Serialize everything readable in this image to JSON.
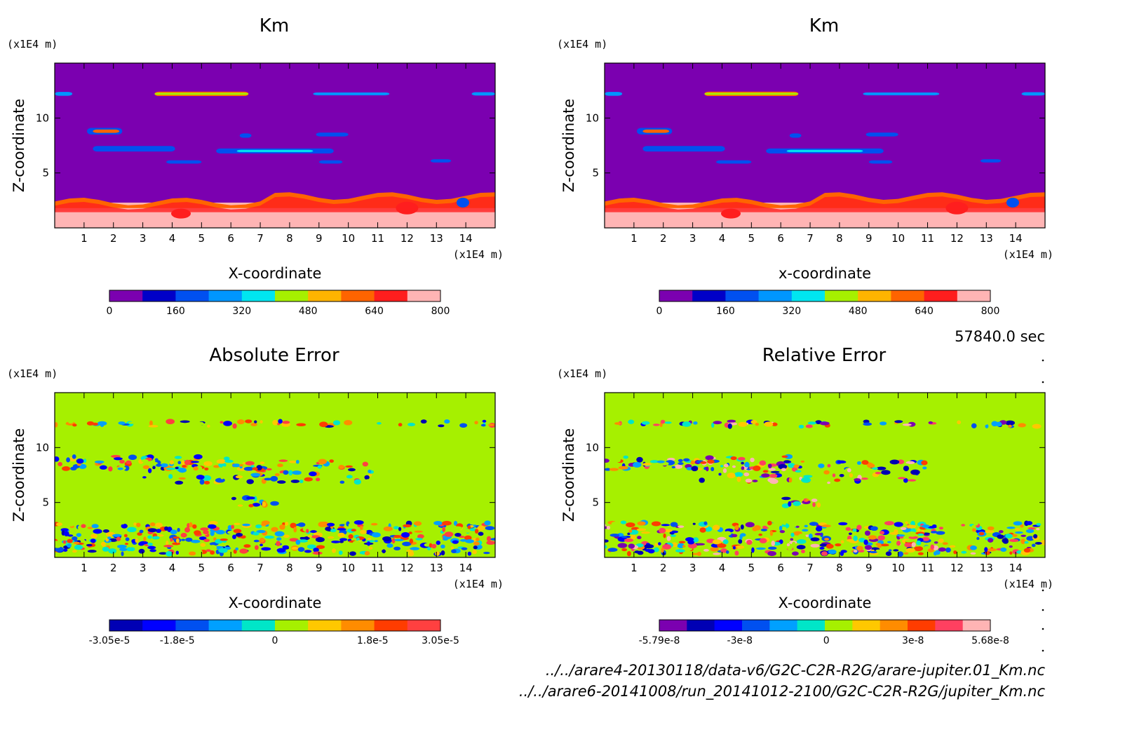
{
  "time_label": "57840.0 sec",
  "files": [
    "../../arare4-20130118/data-v6/G2C-C2R-R2G/arare-jupiter.01_Km.nc",
    "../../arare6-20141008/run_20141012-2100/G2C-C2R-R2G/jupiter_Km.nc"
  ],
  "chart_data": [
    {
      "type": "heatmap",
      "title": "Km",
      "xlabel": "X-coordinate",
      "ylabel": "Z-coordinate",
      "x_unit": "(x1E4 m)",
      "y_unit": "(x1E4 m)",
      "xlim": [
        0,
        15
      ],
      "ylim": [
        0,
        15
      ],
      "xticks": [
        "1",
        "2",
        "3",
        "4",
        "5",
        "6",
        "7",
        "8",
        "9",
        "10",
        "11",
        "12",
        "13",
        "14"
      ],
      "yticks": [
        "5",
        "10"
      ],
      "colorbar": {
        "colors": [
          "#7b00b0",
          "#0000c8",
          "#0050f0",
          "#0096ff",
          "#00e6f0",
          "#a6f000",
          "#ffb400",
          "#ff6400",
          "#ff1e1e",
          "#ffb4b4"
        ],
        "labels": [
          "0",
          "160",
          "320",
          "480",
          "640",
          "800"
        ],
        "label_values": [
          0,
          160,
          320,
          480,
          640,
          800
        ],
        "range": [
          0,
          800
        ]
      },
      "background": "#7b00b0"
    },
    {
      "type": "heatmap",
      "title": "Km",
      "xlabel": "x-coordinate",
      "ylabel": "Z-coordinate",
      "x_unit": "(x1E4 m)",
      "y_unit": "(x1E4 m)",
      "xlim": [
        0,
        15
      ],
      "ylim": [
        0,
        15
      ],
      "xticks": [
        "1",
        "2",
        "3",
        "4",
        "5",
        "6",
        "7",
        "8",
        "9",
        "10",
        "11",
        "12",
        "13",
        "14"
      ],
      "yticks": [
        "5",
        "10"
      ],
      "colorbar": {
        "colors": [
          "#7b00b0",
          "#0000c8",
          "#0050f0",
          "#0096ff",
          "#00e6f0",
          "#a6f000",
          "#ffb400",
          "#ff6400",
          "#ff1e1e",
          "#ffb4b4"
        ],
        "labels": [
          "0",
          "160",
          "320",
          "480",
          "640",
          "800"
        ],
        "label_values": [
          0,
          160,
          320,
          480,
          640,
          800
        ],
        "range": [
          0,
          800
        ]
      },
      "background": "#7b00b0"
    },
    {
      "type": "heatmap",
      "title": "Absolute Error",
      "xlabel": "X-coordinate",
      "ylabel": "Z-coordinate",
      "x_unit": "(x1E4 m)",
      "y_unit": "(x1E4 m)",
      "xlim": [
        0,
        15
      ],
      "ylim": [
        0,
        15
      ],
      "xticks": [
        "1",
        "2",
        "3",
        "4",
        "5",
        "6",
        "7",
        "8",
        "9",
        "10",
        "11",
        "12",
        "13",
        "14"
      ],
      "yticks": [
        "5",
        "10"
      ],
      "colorbar": {
        "colors": [
          "#0000b4",
          "#0000ff",
          "#0050f0",
          "#00a0ff",
          "#00e6c8",
          "#a6f000",
          "#ffc800",
          "#ff8c00",
          "#ff3c00",
          "#ff4040"
        ],
        "labels": [
          "-3.05e-5",
          "-1.8e-5",
          "0",
          "1.8e-5",
          "3.05e-5"
        ],
        "label_values": [
          -3.05e-05,
          -1.8e-05,
          0,
          1.8e-05,
          3.05e-05
        ],
        "range": [
          -3.05e-05,
          3.05e-05
        ]
      },
      "background": "#a6f000"
    },
    {
      "type": "heatmap",
      "title": "Relative Error",
      "xlabel": "X-coordinate",
      "ylabel": "Z-coordinate",
      "x_unit": "(x1E4 m)",
      "y_unit": "(x1E4 m)",
      "xlim": [
        0,
        15
      ],
      "ylim": [
        0,
        15
      ],
      "xticks": [
        "1",
        "2",
        "3",
        "4",
        "5",
        "6",
        "7",
        "8",
        "9",
        "10",
        "11",
        "12",
        "13",
        "14"
      ],
      "yticks": [
        "5",
        "10"
      ],
      "colorbar": {
        "colors": [
          "#7b00b0",
          "#0000b4",
          "#0000ff",
          "#0050f0",
          "#00a0ff",
          "#00e6c8",
          "#a6f000",
          "#ffc800",
          "#ff8c00",
          "#ff3c00",
          "#ff4060",
          "#ffb4b4"
        ],
        "labels": [
          "-5.79e-8",
          "-3e-8",
          "0",
          "3e-8",
          "5.68e-8"
        ],
        "label_values": [
          -5.79e-08,
          -3e-08,
          0,
          3e-08,
          5.68e-08
        ],
        "range": [
          -5.79e-08,
          5.68e-08
        ]
      },
      "background": "#a6f000"
    }
  ]
}
